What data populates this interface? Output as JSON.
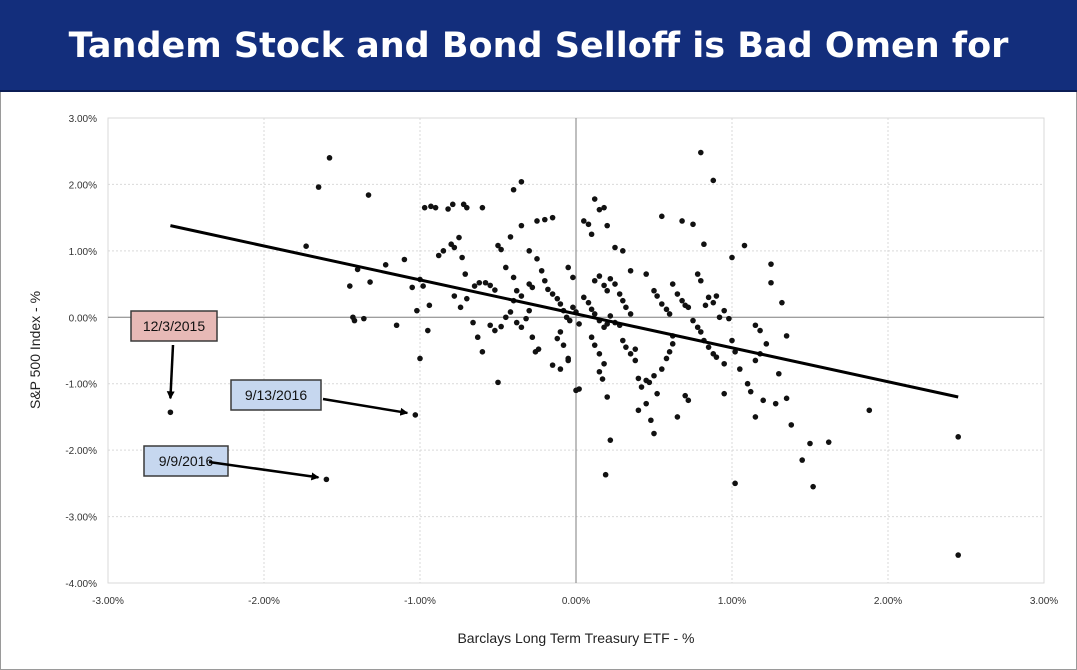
{
  "header": {
    "title": "Tandem Stock and Bond Selloff is Bad Omen for Stocks"
  },
  "colors": {
    "banner": "#132e7c",
    "points": "#111111",
    "trend": "#000000",
    "callout_red": "#e7b9b6",
    "callout_blue": "#c6d7ef"
  },
  "chart_data": {
    "type": "scatter",
    "title": "Tandem Stock and Bond Selloff is Bad Omen for Stocks",
    "xlabel": "Barclays Long Term Treasury ETF - %",
    "ylabel": "S&P 500 Index - %",
    "xlim": [
      -3.0,
      3.0
    ],
    "ylim": [
      -4.0,
      3.0
    ],
    "x_ticks": [
      "-3.00%",
      "-2.00%",
      "-1.00%",
      "0.00%",
      "1.00%",
      "2.00%",
      "3.00%"
    ],
    "y_ticks": [
      "3.00%",
      "2.00%",
      "1.00%",
      "0.00%",
      "-1.00%",
      "-2.00%",
      "-3.00%",
      "-4.00%"
    ],
    "x_tick_values": [
      -3,
      -2,
      -1,
      0,
      1,
      2,
      3
    ],
    "y_tick_values": [
      3,
      2,
      1,
      0,
      -1,
      -2,
      -3,
      -4
    ],
    "grid": true,
    "trendline": {
      "x": [
        -2.6,
        2.45
      ],
      "y": [
        1.38,
        -1.2
      ]
    },
    "annotations": [
      {
        "label": "12/3/2015",
        "style": "red",
        "target": [
          -2.6,
          -1.43
        ]
      },
      {
        "label": "9/13/2016",
        "style": "blue",
        "target": [
          -1.03,
          -1.47
        ]
      },
      {
        "label": "9/9/2016",
        "style": "blue",
        "target": [
          -1.6,
          -2.44
        ]
      }
    ],
    "points": [
      [
        -1.58,
        2.4
      ],
      [
        -1.65,
        1.96
      ],
      [
        -1.33,
        1.84
      ],
      [
        -1.73,
        1.07
      ],
      [
        -1.45,
        0.47
      ],
      [
        -1.4,
        0.72
      ],
      [
        -1.32,
        0.53
      ],
      [
        -1.43,
        0.0
      ],
      [
        -1.42,
        -0.05
      ],
      [
        -1.36,
        -0.02
      ],
      [
        -1.22,
        0.79
      ],
      [
        -1.15,
        -0.12
      ],
      [
        -1.1,
        0.87
      ],
      [
        -1.05,
        0.45
      ],
      [
        -1.02,
        0.1
      ],
      [
        -1.0,
        0.57
      ],
      [
        -0.98,
        0.47
      ],
      [
        -1.0,
        -0.62
      ],
      [
        -0.95,
        -0.2
      ],
      [
        -0.94,
        0.18
      ],
      [
        -0.97,
        1.65
      ],
      [
        -0.93,
        1.67
      ],
      [
        -0.9,
        1.65
      ],
      [
        -0.85,
        1.0
      ],
      [
        -0.82,
        1.63
      ],
      [
        -0.79,
        1.7
      ],
      [
        -0.72,
        1.7
      ],
      [
        -0.7,
        1.65
      ],
      [
        -0.6,
        1.65
      ],
      [
        -0.8,
        1.1
      ],
      [
        -0.78,
        1.05
      ],
      [
        -0.75,
        1.2
      ],
      [
        -0.73,
        0.9
      ],
      [
        -0.71,
        0.65
      ],
      [
        -0.88,
        0.93
      ],
      [
        -0.65,
        0.47
      ],
      [
        -0.62,
        0.52
      ],
      [
        -0.58,
        0.52
      ],
      [
        -0.55,
        0.48
      ],
      [
        -0.52,
        0.41
      ],
      [
        -0.78,
        0.32
      ],
      [
        -0.74,
        0.15
      ],
      [
        -0.7,
        0.28
      ],
      [
        -0.66,
        -0.08
      ],
      [
        -0.63,
        -0.3
      ],
      [
        -0.6,
        -0.52
      ],
      [
        -0.5,
        -0.98
      ],
      [
        -0.48,
        -0.14
      ],
      [
        -0.55,
        -0.12
      ],
      [
        -0.52,
        -0.2
      ],
      [
        -0.45,
        0.0
      ],
      [
        -0.42,
        0.08
      ],
      [
        -0.4,
        0.25
      ],
      [
        -0.38,
        -0.08
      ],
      [
        -0.35,
        -0.15
      ],
      [
        -0.32,
        -0.02
      ],
      [
        -0.3,
        0.1
      ],
      [
        -0.28,
        -0.3
      ],
      [
        -0.26,
        -0.52
      ],
      [
        -0.24,
        -0.48
      ],
      [
        -0.5,
        1.08
      ],
      [
        -0.48,
        1.02
      ],
      [
        -0.4,
        1.92
      ],
      [
        -0.35,
        2.04
      ],
      [
        -0.42,
        1.21
      ],
      [
        -0.35,
        1.38
      ],
      [
        -0.3,
        1.0
      ],
      [
        -0.25,
        1.45
      ],
      [
        -0.2,
        1.47
      ],
      [
        -0.15,
        1.5
      ],
      [
        -0.45,
        0.75
      ],
      [
        -0.4,
        0.6
      ],
      [
        -0.38,
        0.4
      ],
      [
        -0.35,
        0.32
      ],
      [
        -0.3,
        0.5
      ],
      [
        -0.28,
        0.45
      ],
      [
        -0.25,
        0.88
      ],
      [
        -0.22,
        0.7
      ],
      [
        -0.2,
        0.55
      ],
      [
        -0.18,
        0.42
      ],
      [
        -0.15,
        0.35
      ],
      [
        -0.12,
        0.28
      ],
      [
        -0.1,
        0.2
      ],
      [
        -0.08,
        0.1
      ],
      [
        -0.06,
        0.0
      ],
      [
        -0.04,
        -0.05
      ],
      [
        -0.02,
        0.15
      ],
      [
        0.0,
        0.08
      ],
      [
        0.02,
        -0.1
      ],
      [
        -0.1,
        -0.22
      ],
      [
        -0.12,
        -0.32
      ],
      [
        -0.08,
        -0.42
      ],
      [
        -0.05,
        -0.62
      ],
      [
        -0.15,
        -0.72
      ],
      [
        -0.1,
        -0.78
      ],
      [
        -0.05,
        -0.65
      ],
      [
        0.0,
        -1.1
      ],
      [
        0.02,
        -1.08
      ],
      [
        -0.02,
        0.6
      ],
      [
        -0.05,
        0.75
      ],
      [
        0.05,
        1.45
      ],
      [
        0.08,
        1.4
      ],
      [
        0.1,
        1.25
      ],
      [
        0.12,
        1.78
      ],
      [
        0.15,
        1.62
      ],
      [
        0.18,
        1.65
      ],
      [
        0.2,
        1.38
      ],
      [
        0.25,
        1.05
      ],
      [
        0.3,
        1.0
      ],
      [
        0.35,
        0.7
      ],
      [
        0.12,
        0.55
      ],
      [
        0.15,
        0.62
      ],
      [
        0.18,
        0.48
      ],
      [
        0.2,
        0.4
      ],
      [
        0.22,
        0.58
      ],
      [
        0.25,
        0.5
      ],
      [
        0.28,
        0.35
      ],
      [
        0.3,
        0.25
      ],
      [
        0.32,
        0.15
      ],
      [
        0.35,
        0.05
      ],
      [
        0.05,
        0.3
      ],
      [
        0.08,
        0.22
      ],
      [
        0.1,
        0.12
      ],
      [
        0.12,
        0.05
      ],
      [
        0.15,
        -0.05
      ],
      [
        0.18,
        -0.15
      ],
      [
        0.2,
        -0.1
      ],
      [
        0.22,
        0.02
      ],
      [
        0.25,
        -0.08
      ],
      [
        0.28,
        -0.12
      ],
      [
        0.1,
        -0.3
      ],
      [
        0.12,
        -0.42
      ],
      [
        0.15,
        -0.55
      ],
      [
        0.18,
        -0.7
      ],
      [
        0.15,
        -0.82
      ],
      [
        0.17,
        -0.93
      ],
      [
        0.2,
        -1.2
      ],
      [
        0.22,
        -1.85
      ],
      [
        0.19,
        -2.37
      ],
      [
        0.3,
        -0.35
      ],
      [
        0.32,
        -0.45
      ],
      [
        0.35,
        -0.55
      ],
      [
        0.38,
        -0.65
      ],
      [
        0.4,
        -0.92
      ],
      [
        0.42,
        -1.05
      ],
      [
        0.45,
        -0.95
      ],
      [
        0.47,
        -0.98
      ],
      [
        0.5,
        -0.88
      ],
      [
        0.52,
        -1.15
      ],
      [
        0.4,
        -1.4
      ],
      [
        0.45,
        -1.3
      ],
      [
        0.48,
        -1.55
      ],
      [
        0.5,
        -1.75
      ],
      [
        0.55,
        -0.78
      ],
      [
        0.58,
        -0.62
      ],
      [
        0.6,
        -0.52
      ],
      [
        0.62,
        -0.4
      ],
      [
        0.65,
        -1.5
      ],
      [
        0.7,
        -1.18
      ],
      [
        0.72,
        -1.25
      ],
      [
        0.45,
        0.65
      ],
      [
        0.5,
        0.4
      ],
      [
        0.52,
        0.32
      ],
      [
        0.55,
        0.2
      ],
      [
        0.58,
        0.12
      ],
      [
        0.6,
        0.05
      ],
      [
        0.62,
        0.5
      ],
      [
        0.65,
        0.35
      ],
      [
        0.68,
        0.25
      ],
      [
        0.7,
        0.18
      ],
      [
        0.55,
        1.52
      ],
      [
        0.68,
        1.45
      ],
      [
        0.75,
        1.4
      ],
      [
        0.78,
        0.65
      ],
      [
        0.8,
        0.55
      ],
      [
        0.82,
        1.1
      ],
      [
        0.8,
        2.48
      ],
      [
        0.88,
        2.06
      ],
      [
        0.72,
        0.15
      ],
      [
        0.75,
        -0.05
      ],
      [
        0.78,
        -0.15
      ],
      [
        0.8,
        -0.22
      ],
      [
        0.82,
        -0.35
      ],
      [
        0.85,
        -0.45
      ],
      [
        0.88,
        -0.55
      ],
      [
        0.9,
        -0.6
      ],
      [
        0.92,
        0.0
      ],
      [
        0.95,
        0.1
      ],
      [
        0.98,
        -0.02
      ],
      [
        0.9,
        0.32
      ],
      [
        0.85,
        0.3
      ],
      [
        0.88,
        0.22
      ],
      [
        0.83,
        0.18
      ],
      [
        0.95,
        -0.7
      ],
      [
        0.95,
        -1.15
      ],
      [
        1.0,
        -0.35
      ],
      [
        1.02,
        -0.52
      ],
      [
        1.05,
        -0.78
      ],
      [
        1.08,
        1.08
      ],
      [
        1.0,
        0.9
      ],
      [
        1.1,
        -1.0
      ],
      [
        1.12,
        -1.12
      ],
      [
        1.15,
        -0.65
      ],
      [
        1.18,
        -0.55
      ],
      [
        1.2,
        -1.25
      ],
      [
        1.15,
        -0.12
      ],
      [
        1.18,
        -0.2
      ],
      [
        1.22,
        -0.4
      ],
      [
        1.25,
        0.8
      ],
      [
        1.25,
        0.52
      ],
      [
        1.28,
        -1.3
      ],
      [
        1.3,
        -0.85
      ],
      [
        1.32,
        0.22
      ],
      [
        1.35,
        -1.22
      ],
      [
        1.38,
        -1.62
      ],
      [
        1.35,
        -0.28
      ],
      [
        1.15,
        -1.5
      ],
      [
        1.02,
        -2.5
      ],
      [
        1.45,
        -2.15
      ],
      [
        1.5,
        -1.9
      ],
      [
        1.52,
        -2.55
      ],
      [
        1.62,
        -1.88
      ],
      [
        1.88,
        -1.4
      ],
      [
        2.45,
        -1.8
      ],
      [
        2.45,
        -3.58
      ],
      [
        -2.6,
        -1.43
      ],
      [
        -1.03,
        -1.47
      ],
      [
        -1.6,
        -2.44
      ],
      [
        0.38,
        -0.48
      ],
      [
        0.62,
        -0.28
      ]
    ]
  }
}
